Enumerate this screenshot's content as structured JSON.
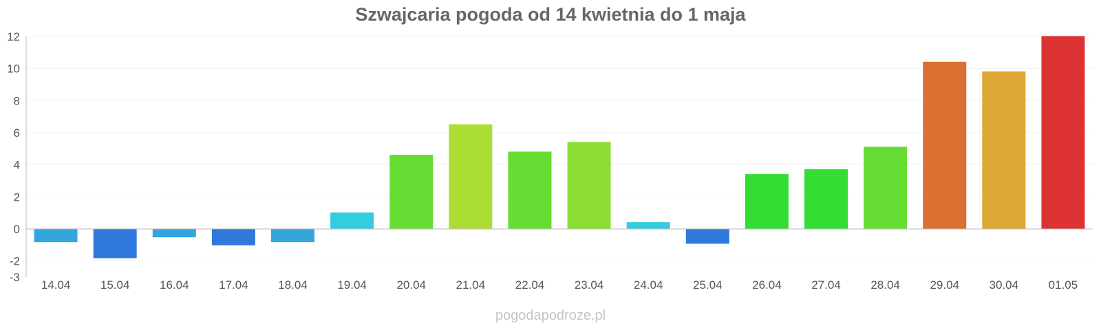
{
  "chart_data": {
    "type": "bar",
    "title": "Szwajcaria pogoda od 14 kwietnia do 1 maja",
    "xlabel": "",
    "ylabel": "",
    "categories": [
      "14.04",
      "15.04",
      "16.04",
      "17.04",
      "18.04",
      "19.04",
      "20.04",
      "21.04",
      "22.04",
      "23.04",
      "24.04",
      "25.04",
      "26.04",
      "27.04",
      "28.04",
      "29.04",
      "30.04",
      "01.05"
    ],
    "values": [
      -0.8,
      -1.8,
      -0.5,
      -1.0,
      -0.8,
      1.0,
      4.6,
      6.5,
      4.8,
      5.4,
      0.4,
      -0.9,
      3.4,
      3.7,
      5.1,
      10.4,
      9.8,
      12.0
    ],
    "colors": [
      "#33a7dd",
      "#3178dd",
      "#33a7dd",
      "#3178dd",
      "#33a7dd",
      "#33cddd",
      "#66dd33",
      "#acdd33",
      "#66dd33",
      "#8cdd33",
      "#33cddd",
      "#3178dd",
      "#33dd33",
      "#33dd33",
      "#66dd33",
      "#dd6f33",
      "#dda733",
      "#dd3333"
    ],
    "yticks": [
      -3,
      -2,
      0,
      2,
      4,
      6,
      8,
      10,
      12
    ],
    "ylim": [
      -3,
      12
    ],
    "grid": true,
    "legend": "none"
  },
  "watermark": "pogodapodroze.pl"
}
